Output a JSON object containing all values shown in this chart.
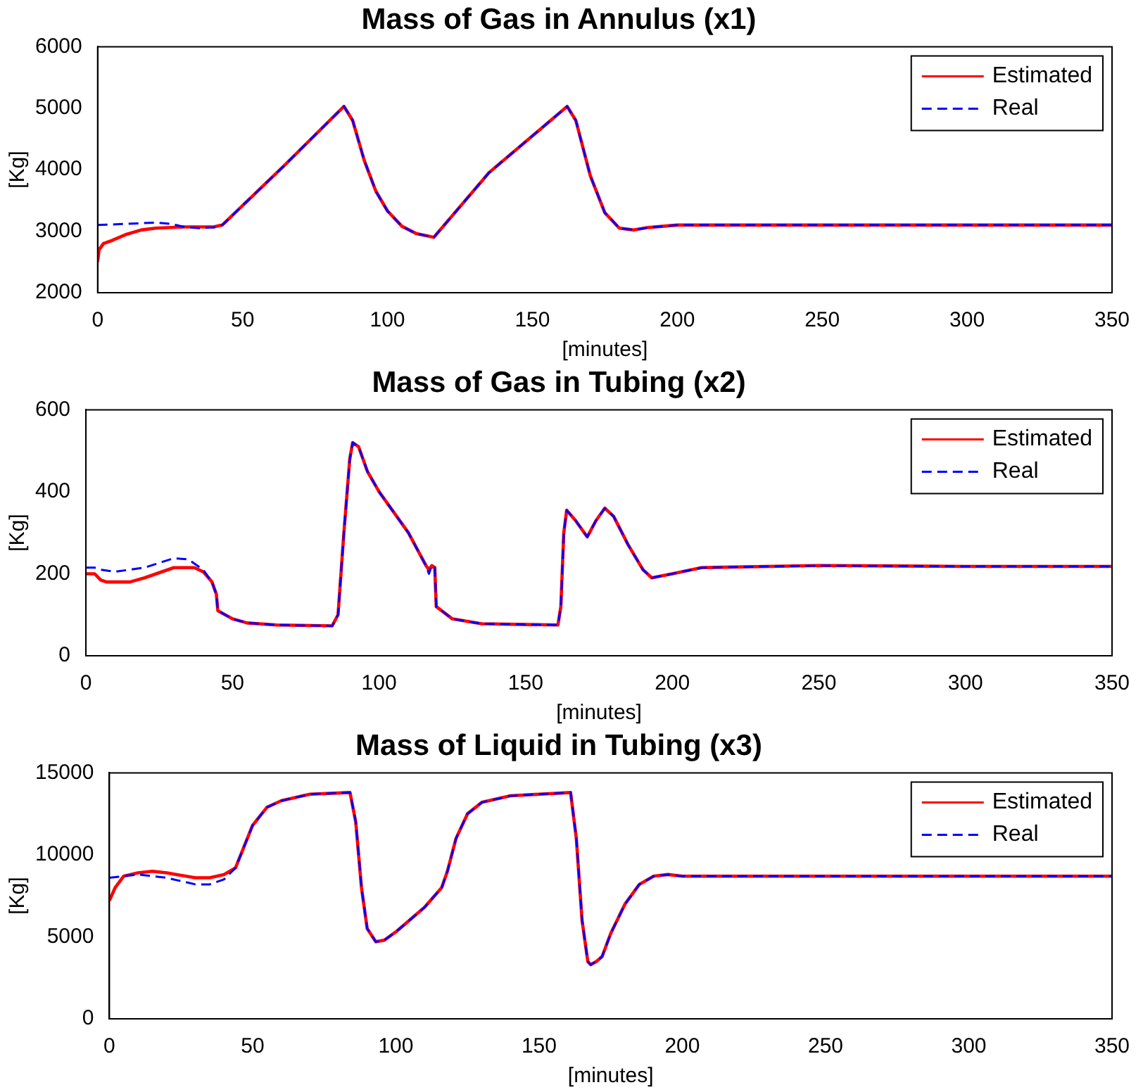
{
  "chart_data": [
    {
      "type": "line",
      "title": "Mass of Gas in Annulus (x1)",
      "xlabel": "[minutes]",
      "ylabel": "[Kg]",
      "xlim": [
        0,
        350
      ],
      "xticks": [
        0,
        50,
        100,
        150,
        200,
        250,
        300,
        350
      ],
      "ylim": [
        2000,
        6000
      ],
      "yticks": [
        2000,
        3000,
        4000,
        5000,
        6000
      ],
      "grid": false,
      "legend": "top right",
      "marker": "none",
      "series": [
        {
          "name": "Estimated",
          "color": "#ff0000",
          "line_style": "solid",
          "x": [
            0,
            0.5,
            2,
            5,
            10,
            15,
            20,
            30,
            40,
            43,
            64,
            85,
            88,
            92,
            96,
            100,
            105,
            110,
            116,
            135,
            162,
            165,
            170,
            175,
            180,
            185,
            190,
            200,
            250,
            300,
            350
          ],
          "values": [
            2500,
            2700,
            2800,
            2850,
            2950,
            3020,
            3050,
            3070,
            3070,
            3100,
            4050,
            5030,
            4800,
            4150,
            3650,
            3330,
            3080,
            2960,
            2900,
            3950,
            5030,
            4800,
            3900,
            3300,
            3050,
            3020,
            3060,
            3100,
            3100,
            3100,
            3100
          ]
        },
        {
          "name": "Real",
          "color": "#0000ff",
          "line_style": "dashed",
          "x": [
            0,
            10,
            20,
            25,
            30,
            35,
            40,
            43,
            64,
            85,
            88,
            92,
            96,
            100,
            105,
            110,
            116,
            135,
            162,
            165,
            170,
            175,
            180,
            185,
            190,
            200,
            250,
            300,
            350
          ],
          "values": [
            3100,
            3120,
            3140,
            3120,
            3070,
            3050,
            3060,
            3100,
            4050,
            5030,
            4800,
            4150,
            3650,
            3330,
            3080,
            2960,
            2900,
            3950,
            5030,
            4800,
            3900,
            3300,
            3050,
            3020,
            3060,
            3100,
            3100,
            3100,
            3100
          ]
        }
      ]
    },
    {
      "type": "line",
      "title": "Mass of Gas in Tubing (x2)",
      "xlabel": "[minutes]",
      "ylabel": "[Kg]",
      "xlim": [
        0,
        350
      ],
      "xticks": [
        0,
        50,
        100,
        150,
        200,
        250,
        300,
        350
      ],
      "ylim": [
        0,
        600
      ],
      "yticks": [
        0,
        200,
        400,
        600
      ],
      "grid": false,
      "legend": "top right",
      "marker": "none",
      "series": [
        {
          "name": "Estimated",
          "color": "#ff0000",
          "line_style": "solid",
          "x": [
            0,
            3,
            5,
            7,
            15,
            20,
            30,
            37,
            40,
            43,
            44.5,
            45,
            50,
            55,
            65,
            84,
            86,
            88,
            90,
            91,
            93,
            96,
            100,
            110,
            116,
            117,
            118,
            119,
            119.5,
            125,
            135,
            161,
            162,
            163,
            164,
            167,
            171,
            174,
            177,
            180,
            185,
            190,
            193,
            200,
            210,
            250,
            300,
            350
          ],
          "values": [
            200,
            200,
            185,
            180,
            180,
            190,
            215,
            215,
            205,
            180,
            150,
            110,
            90,
            80,
            75,
            73,
            100,
            300,
            480,
            520,
            510,
            450,
            400,
            300,
            220,
            210,
            220,
            215,
            120,
            90,
            78,
            75,
            120,
            300,
            355,
            330,
            290,
            330,
            360,
            340,
            270,
            210,
            190,
            200,
            215,
            220,
            218,
            218
          ]
        },
        {
          "name": "Real",
          "color": "#0000ff",
          "line_style": "dashed",
          "x": [
            0,
            3,
            5,
            10,
            20,
            30,
            35,
            40,
            43,
            44.5,
            45,
            50,
            55,
            65,
            84,
            86,
            88,
            90,
            91,
            93,
            96,
            100,
            110,
            116,
            117,
            118,
            119,
            119.5,
            125,
            135,
            161,
            162,
            163,
            164,
            167,
            171,
            174,
            177,
            180,
            185,
            190,
            193,
            200,
            210,
            250,
            300,
            350
          ],
          "values": [
            215,
            215,
            210,
            205,
            215,
            238,
            235,
            210,
            180,
            150,
            110,
            90,
            80,
            75,
            73,
            100,
            300,
            480,
            520,
            510,
            450,
            400,
            300,
            220,
            200,
            220,
            215,
            120,
            90,
            78,
            75,
            120,
            300,
            355,
            330,
            290,
            330,
            360,
            340,
            270,
            210,
            190,
            200,
            215,
            220,
            218,
            218
          ]
        }
      ]
    },
    {
      "type": "line",
      "title": "Mass of Liquid in Tubing (x3)",
      "xlabel": "[minutes]",
      "ylabel": "[Kg]",
      "xlim": [
        0,
        350
      ],
      "xticks": [
        0,
        50,
        100,
        150,
        200,
        250,
        300,
        350
      ],
      "ylim": [
        0,
        15000
      ],
      "yticks": [
        0,
        5000,
        10000,
        15000
      ],
      "grid": false,
      "legend": "top right",
      "marker": "none",
      "series": [
        {
          "name": "Estimated",
          "color": "#ff0000",
          "line_style": "solid",
          "x": [
            0,
            2,
            5,
            10,
            15,
            20,
            30,
            35,
            40,
            44,
            47,
            50,
            55,
            60,
            70,
            84,
            86,
            88,
            90,
            93,
            96,
            100,
            110,
            116,
            118,
            121,
            125,
            130,
            140,
            161,
            163,
            165,
            167,
            168,
            170,
            172,
            175,
            180,
            185,
            190,
            195,
            200,
            250,
            350
          ],
          "values": [
            7200,
            8000,
            8700,
            8900,
            9000,
            8900,
            8600,
            8600,
            8800,
            9200,
            10500,
            11800,
            12900,
            13300,
            13700,
            13800,
            12000,
            8000,
            5500,
            4700,
            4800,
            5300,
            6800,
            8000,
            9000,
            11000,
            12500,
            13200,
            13600,
            13800,
            11000,
            6000,
            3500,
            3300,
            3500,
            3800,
            5200,
            7000,
            8200,
            8700,
            8800,
            8700,
            8700,
            8700
          ]
        },
        {
          "name": "Real",
          "color": "#0000ff",
          "line_style": "dashed",
          "x": [
            0,
            5,
            10,
            15,
            20,
            30,
            35,
            40,
            44,
            47,
            50,
            55,
            60,
            70,
            84,
            86,
            88,
            90,
            93,
            96,
            100,
            110,
            116,
            118,
            121,
            125,
            130,
            140,
            161,
            163,
            165,
            167,
            168,
            170,
            172,
            175,
            180,
            185,
            190,
            195,
            200,
            250,
            350
          ],
          "values": [
            8600,
            8700,
            8800,
            8700,
            8600,
            8200,
            8200,
            8500,
            9200,
            10500,
            11800,
            12900,
            13300,
            13700,
            13800,
            12000,
            8000,
            5500,
            4700,
            4800,
            5300,
            6800,
            8000,
            9000,
            11000,
            12500,
            13200,
            13600,
            13800,
            11000,
            6000,
            3500,
            3300,
            3500,
            3800,
            5200,
            7000,
            8200,
            8700,
            8800,
            8700,
            8700,
            8700
          ]
        }
      ]
    }
  ]
}
